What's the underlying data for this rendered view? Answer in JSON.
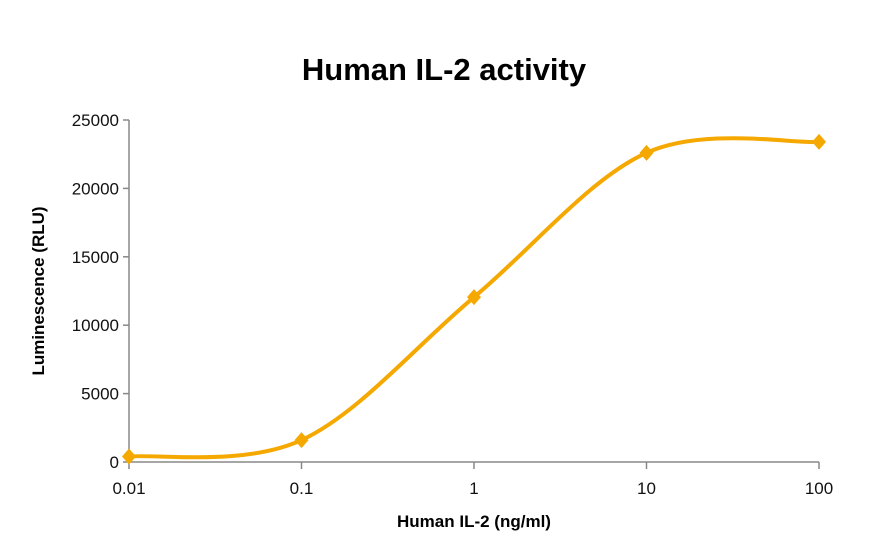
{
  "chart_data": {
    "type": "line",
    "title": "Human IL-2 activity",
    "xlabel": "Human IL-2 (ng/ml)",
    "ylabel": "Luminescence (RLU)",
    "x_scale": "log",
    "xlim": [
      0.01,
      100
    ],
    "ylim": [
      0,
      25000
    ],
    "x_ticks": [
      "0.01",
      "0.1",
      "1",
      "10",
      "100"
    ],
    "y_ticks": [
      "0",
      "5000",
      "10000",
      "15000",
      "20000",
      "25000"
    ],
    "grid": false,
    "smoothed": true,
    "marker": "diamond",
    "color": "#F5A800",
    "series": [
      {
        "x": [
          0.01,
          0.1,
          1,
          10,
          100
        ],
        "y": [
          400,
          1600,
          12050,
          22600,
          23400
        ]
      }
    ]
  }
}
